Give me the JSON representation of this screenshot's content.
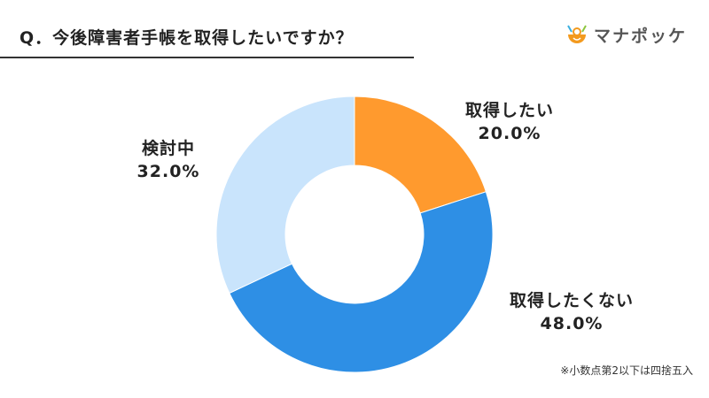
{
  "title": "Q．今後障害者手帳を取得したいですか？",
  "logo": {
    "text": "マナポッケ"
  },
  "note": "※小数点第2以下は四捨五入",
  "chart_data": {
    "type": "pie",
    "donut": true,
    "title": "Q．今後障害者手帳を取得したいですか？",
    "slices": [
      {
        "label": "取得したい",
        "value": 20.0,
        "display": "20.0%",
        "color": "#FF9A2E"
      },
      {
        "label": "取得したくない",
        "value": 48.0,
        "display": "48.0%",
        "color": "#2E8FE5"
      },
      {
        "label": "検討中",
        "value": 32.0,
        "display": "32.0%",
        "color": "#C9E4FC"
      }
    ]
  }
}
